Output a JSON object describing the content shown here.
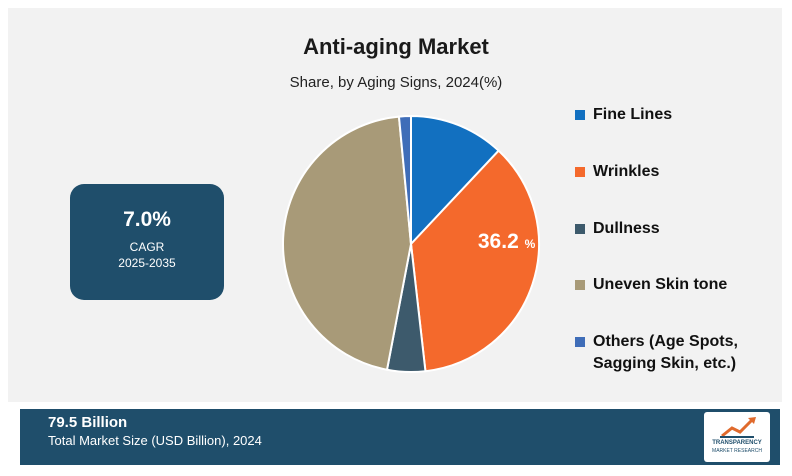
{
  "chart_data": {
    "type": "pie",
    "title": "Anti-aging Market",
    "subtitle": "Share, by Aging Signs, 2024(%)",
    "slices": [
      {
        "label": "Fine Lines",
        "value": 12.0,
        "color": "#1270c0"
      },
      {
        "label": "Wrinkles",
        "value": 36.2,
        "color": "#f4692c"
      },
      {
        "label": "Dullness",
        "value": 4.8,
        "color": "#3d5a6c"
      },
      {
        "label": "Uneven Skin tone",
        "value": 45.5,
        "color": "#a89a78"
      },
      {
        "label": "Others (Age Spots, Sagging Skin, etc.)",
        "value": 1.5,
        "color": "#3f6db8"
      }
    ],
    "data_label": {
      "slice": "Wrinkles",
      "number": "36.2",
      "unit": "%"
    },
    "legend_position": "right"
  },
  "legend": {
    "items": [
      {
        "lines": [
          "Fine Lines"
        ],
        "color": "#1270c0"
      },
      {
        "lines": [
          "Wrinkles"
        ],
        "color": "#f4692c"
      },
      {
        "lines": [
          "Dullness"
        ],
        "color": "#3d5a6c"
      },
      {
        "lines": [
          "Uneven Skin tone"
        ],
        "color": "#a89a78"
      },
      {
        "lines": [
          "Others (Age Spots,",
          "Sagging Skin, etc.)"
        ],
        "color": "#3f6db8"
      }
    ]
  },
  "cagr": {
    "value": "7.0%",
    "label": "CAGR",
    "years": "2025-2035"
  },
  "footer": {
    "value": "79.5 Billion",
    "caption": "Total Market Size (USD Billion), 2024"
  },
  "logo": {
    "line1": "TRANSPARENCY",
    "line2": "MARKET RESEARCH"
  }
}
